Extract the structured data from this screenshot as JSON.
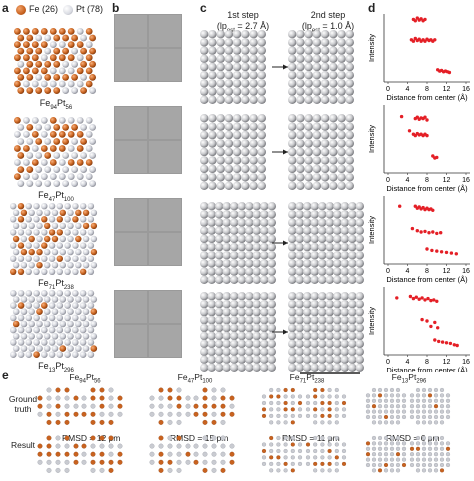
{
  "panels": {
    "a": "a",
    "b": "b",
    "c": "c",
    "d": "d",
    "e": "e"
  },
  "legend": {
    "fe": {
      "label": "Fe (26)",
      "color": "#c8621f"
    },
    "pt": {
      "label": "Pt (78)",
      "color": "#d9dbe2"
    }
  },
  "clusters": [
    {
      "base1": "Fe",
      "sub1": "94",
      "base2": "Pt",
      "sub2": "56"
    },
    {
      "base1": "Fe",
      "sub1": "47",
      "base2": "Pt",
      "sub2": "100"
    },
    {
      "base1": "Fe",
      "sub1": "71",
      "base2": "Pt",
      "sub2": "238"
    },
    {
      "base1": "Fe",
      "sub1": "13",
      "base2": "Pt",
      "sub2": "296"
    }
  ],
  "steps": {
    "first": {
      "title": "1st step",
      "res": "(lp",
      "sub": "est",
      "val": " = 2.7 Å)"
    },
    "second": {
      "title": "2nd step",
      "res": "(lp",
      "sub": "est",
      "val": " = 1.0 Å)"
    }
  },
  "profile_axes": {
    "ylabel": "Intensity",
    "xlabel": "Distance from center (Å)",
    "xticks": [
      "0",
      "4",
      "8",
      "12",
      "16"
    ]
  },
  "chart_data": [
    {
      "type": "scatter",
      "ylabel": "Intensity",
      "xlabel": "Distance from center (Å)",
      "xlim": [
        0,
        16
      ],
      "series": [
        {
          "values": [
            [
              5.2,
              0.92
            ],
            [
              5.6,
              0.9
            ],
            [
              6.0,
              0.94
            ],
            [
              6.4,
              0.91
            ],
            [
              6.8,
              0.93
            ],
            [
              7.2,
              0.9
            ],
            [
              7.6,
              0.92
            ],
            [
              4.8,
              0.62
            ],
            [
              5.2,
              0.6
            ],
            [
              5.6,
              0.64
            ],
            [
              6.0,
              0.61
            ],
            [
              6.4,
              0.63
            ],
            [
              6.8,
              0.6
            ],
            [
              7.2,
              0.62
            ],
            [
              7.6,
              0.6
            ],
            [
              8.0,
              0.63
            ],
            [
              8.4,
              0.61
            ],
            [
              8.8,
              0.62
            ],
            [
              9.2,
              0.6
            ],
            [
              9.6,
              0.62
            ],
            [
              10.2,
              0.18
            ],
            [
              10.6,
              0.16
            ],
            [
              11.0,
              0.17
            ],
            [
              11.4,
              0.15
            ],
            [
              11.8,
              0.16
            ],
            [
              12.2,
              0.15
            ],
            [
              12.6,
              0.14
            ]
          ]
        }
      ]
    },
    {
      "type": "scatter",
      "ylabel": "Intensity",
      "xlabel": "Distance from center (Å)",
      "xlim": [
        0,
        16
      ],
      "series": [
        {
          "values": [
            [
              2.8,
              0.83
            ],
            [
              5.6,
              0.8
            ],
            [
              6.0,
              0.82
            ],
            [
              6.4,
              0.79
            ],
            [
              6.8,
              0.81
            ],
            [
              7.2,
              0.8
            ],
            [
              7.6,
              0.82
            ],
            [
              8.0,
              0.78
            ],
            [
              4.4,
              0.62
            ],
            [
              5.2,
              0.57
            ],
            [
              5.6,
              0.55
            ],
            [
              6.0,
              0.58
            ],
            [
              6.4,
              0.56
            ],
            [
              6.8,
              0.57
            ],
            [
              7.2,
              0.55
            ],
            [
              7.6,
              0.57
            ],
            [
              8.0,
              0.55
            ],
            [
              9.2,
              0.25
            ],
            [
              9.6,
              0.22
            ],
            [
              10.0,
              0.23
            ]
          ]
        }
      ]
    },
    {
      "type": "scatter",
      "ylabel": "Intensity",
      "xlabel": "Distance from center (Å)",
      "xlim": [
        0,
        16
      ],
      "series": [
        {
          "values": [
            [
              2.4,
              0.85
            ],
            [
              5.6,
              0.85
            ],
            [
              6.0,
              0.82
            ],
            [
              6.4,
              0.84
            ],
            [
              6.8,
              0.81
            ],
            [
              7.2,
              0.83
            ],
            [
              7.6,
              0.8
            ],
            [
              8.0,
              0.82
            ],
            [
              8.4,
              0.8
            ],
            [
              8.8,
              0.81
            ],
            [
              9.2,
              0.79
            ],
            [
              5.0,
              0.52
            ],
            [
              6.0,
              0.49
            ],
            [
              6.8,
              0.47
            ],
            [
              7.6,
              0.48
            ],
            [
              8.4,
              0.46
            ],
            [
              9.2,
              0.47
            ],
            [
              10.0,
              0.45
            ],
            [
              10.8,
              0.46
            ],
            [
              8.0,
              0.22
            ],
            [
              9.0,
              0.2
            ],
            [
              10.0,
              0.19
            ],
            [
              11.0,
              0.18
            ],
            [
              12.0,
              0.17
            ],
            [
              13.0,
              0.16
            ],
            [
              14.0,
              0.15
            ]
          ]
        }
      ]
    },
    {
      "type": "scatter",
      "ylabel": "Intensity",
      "xlabel": "Distance from center (Å)",
      "xlim": [
        0,
        16
      ],
      "series": [
        {
          "values": [
            [
              1.8,
              0.84
            ],
            [
              4.6,
              0.86
            ],
            [
              5.2,
              0.83
            ],
            [
              5.8,
              0.85
            ],
            [
              6.4,
              0.82
            ],
            [
              7.0,
              0.84
            ],
            [
              7.6,
              0.81
            ],
            [
              8.2,
              0.83
            ],
            [
              8.8,
              0.8
            ],
            [
              9.4,
              0.81
            ],
            [
              10.0,
              0.79
            ],
            [
              7.0,
              0.52
            ],
            [
              8.0,
              0.5
            ],
            [
              8.8,
              0.42
            ],
            [
              9.6,
              0.48
            ],
            [
              10.2,
              0.4
            ],
            [
              9.6,
              0.22
            ],
            [
              10.4,
              0.2
            ],
            [
              11.2,
              0.19
            ],
            [
              12.0,
              0.18
            ],
            [
              12.8,
              0.17
            ],
            [
              13.6,
              0.15
            ],
            [
              14.2,
              0.14
            ]
          ]
        }
      ]
    }
  ],
  "grid_compare": {
    "row_labels": {
      "ground": "Ground\ntruth",
      "result": "Result"
    },
    "titles": [
      {
        "base1": "Fe",
        "sub1": "94",
        "base2": "Pt",
        "sub2": "56"
      },
      {
        "base1": "Fe",
        "sub1": "47",
        "base2": "Pt",
        "sub2": "100"
      },
      {
        "base1": "Fe",
        "sub1": "71",
        "base2": "Pt",
        "sub2": "238"
      },
      {
        "base1": "Fe",
        "sub1": "13",
        "base2": "Pt",
        "sub2": "296"
      }
    ],
    "rmsd": [
      "RMSD = 12 pm",
      "RMSD = 15 pm",
      "RMSD = 11 pm",
      "RMSD = 6 pm"
    ]
  }
}
